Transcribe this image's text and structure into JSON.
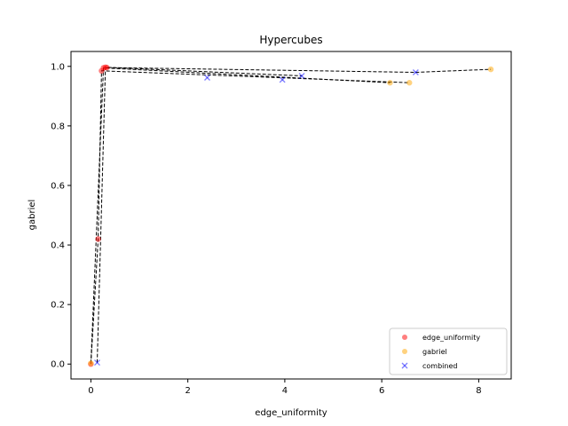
{
  "chart_data": {
    "type": "scatter",
    "title": "Hypercubes",
    "xlabel": "edge_uniformity",
    "ylabel": "gabriel",
    "xlim": [
      -0.41,
      8.67
    ],
    "ylim": [
      -0.05,
      1.05
    ],
    "xticks": [
      {
        "value": 0,
        "label": "0"
      },
      {
        "value": 2,
        "label": "2"
      },
      {
        "value": 4,
        "label": "4"
      },
      {
        "value": 6,
        "label": "6"
      },
      {
        "value": 8,
        "label": "8"
      }
    ],
    "yticks": [
      {
        "value": 0.0,
        "label": "0.0"
      },
      {
        "value": 0.2,
        "label": "0.2"
      },
      {
        "value": 0.4,
        "label": "0.4"
      },
      {
        "value": 0.6,
        "label": "0.6"
      },
      {
        "value": 0.8,
        "label": "0.8"
      },
      {
        "value": 1.0,
        "label": "1.0"
      }
    ],
    "grid": false,
    "legend_position": "bottom-right",
    "series": [
      {
        "name": "edge_uniformity",
        "marker": "circle",
        "color": "#ff0000",
        "points": [
          [
            0.0,
            0.0
          ],
          [
            0.15,
            0.42
          ],
          [
            0.22,
            0.985
          ],
          [
            0.26,
            0.995
          ],
          [
            0.3,
            0.997
          ],
          [
            0.33,
            0.996
          ]
        ]
      },
      {
        "name": "gabriel",
        "marker": "circle",
        "color": "#ffa500",
        "points": [
          [
            0.0,
            0.003
          ],
          [
            6.17,
            0.945
          ],
          [
            6.57,
            0.945
          ],
          [
            8.25,
            0.99
          ]
        ]
      },
      {
        "name": "combined",
        "marker": "x",
        "color": "#0000ff",
        "points": [
          [
            0.13,
            0.005
          ],
          [
            2.4,
            0.962
          ],
          [
            3.95,
            0.955
          ],
          [
            4.35,
            0.968
          ],
          [
            6.7,
            0.98
          ]
        ]
      }
    ],
    "connector_lines": [
      [
        [
          0.0,
          0.0
        ],
        [
          0.15,
          0.42
        ],
        [
          0.22,
          0.985
        ],
        [
          6.57,
          0.945
        ]
      ],
      [
        [
          0.0,
          0.003
        ],
        [
          0.26,
          0.995
        ],
        [
          6.17,
          0.945
        ]
      ],
      [
        [
          0.13,
          0.005
        ],
        [
          0.3,
          0.997
        ],
        [
          4.35,
          0.968
        ]
      ],
      [
        [
          0.33,
          0.996
        ],
        [
          6.7,
          0.98
        ],
        [
          8.25,
          0.99
        ]
      ]
    ]
  }
}
